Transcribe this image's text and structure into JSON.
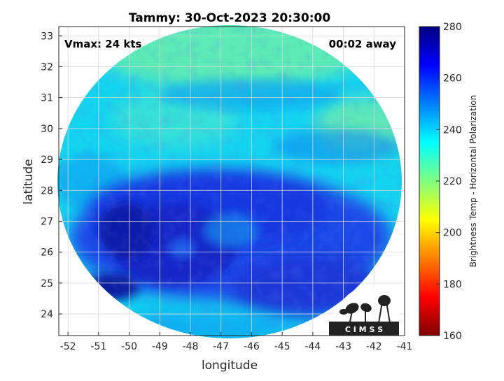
{
  "title": "Tammy: 30-Oct-2023 20:30:00",
  "vmax_label": "Vmax: 24 kts",
  "time_label": "00:02 away",
  "xlabel": "longitude",
  "ylabel": "latitude",
  "colorbar_label": "Brightness Temp - Horizontal Polarization",
  "logo_text": "C I M S S",
  "x_ticks": [
    "-52",
    "-51",
    "-50",
    "-49",
    "-48",
    "-47",
    "-46",
    "-45",
    "-44",
    "-43",
    "-42",
    "-41"
  ],
  "y_ticks": [
    "24",
    "25",
    "26",
    "27",
    "28",
    "29",
    "30",
    "31",
    "32",
    "33"
  ],
  "colorbar_ticks": [
    "160",
    "180",
    "200",
    "220",
    "240",
    "260",
    "280"
  ],
  "chart_data": {
    "type": "heatmap",
    "title": "Tammy: 30-Oct-2023 20:30:00",
    "xlabel": "longitude",
    "ylabel": "latitude",
    "xlim": [
      -52.3,
      -41
    ],
    "ylim": [
      23.3,
      33.3
    ],
    "color_range": [
      160,
      280
    ],
    "colorbar_label": "Brightness Temp - Horizontal Polarization",
    "colormap": "jet",
    "grid": true,
    "center": [
      -46.8,
      28.3
    ],
    "storm_center": [
      -48.7,
      26.1
    ]
  }
}
